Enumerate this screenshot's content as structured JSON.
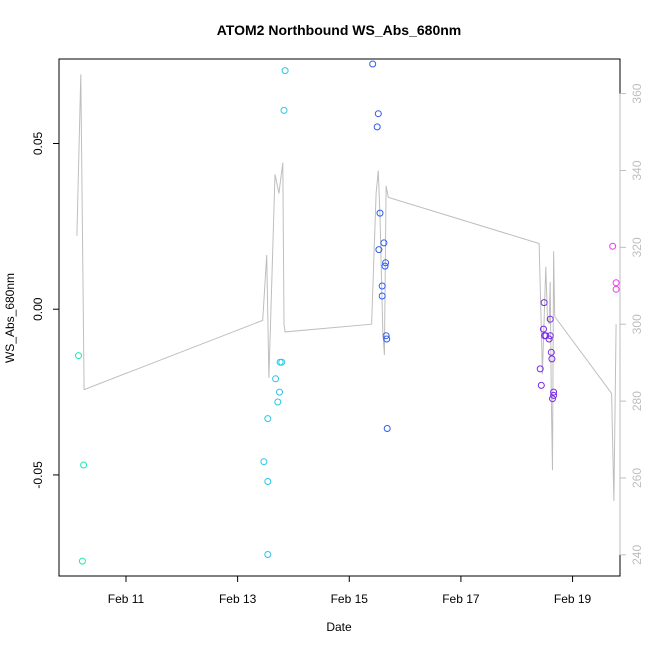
{
  "chart_data": {
    "type": "scatter",
    "title": "ATOM2 Northbound WS_Abs_680nm",
    "xlabel": "Date",
    "ylabel": "WS_Abs_680nm",
    "xlim": [
      9.8,
      19.85
    ],
    "ylim": [
      -0.0805,
      0.0755
    ],
    "y2lim": [
      234.5,
      369.0
    ],
    "x_ticks": [
      {
        "value": 11,
        "label": "Feb 11"
      },
      {
        "value": 13,
        "label": "Feb 13"
      },
      {
        "value": 15,
        "label": "Feb 15"
      },
      {
        "value": 17,
        "label": "Feb 17"
      },
      {
        "value": 19,
        "label": "Feb 19"
      }
    ],
    "y_ticks": [
      {
        "value": -0.05,
        "label": "-0.05"
      },
      {
        "value": 0.0,
        "label": "0.00"
      },
      {
        "value": 0.05,
        "label": "0.05"
      }
    ],
    "y2_ticks": [
      {
        "value": 240,
        "label": "240"
      },
      {
        "value": 260,
        "label": "260"
      },
      {
        "value": 280,
        "label": "280"
      },
      {
        "value": 300,
        "label": "300"
      },
      {
        "value": 320,
        "label": "320"
      },
      {
        "value": 340,
        "label": "340"
      },
      {
        "value": 360,
        "label": "360"
      }
    ],
    "grid": false,
    "points": [
      {
        "x": 10.15,
        "y": -0.014,
        "color": "#1de9b6"
      },
      {
        "x": 10.24,
        "y": -0.047,
        "color": "#1de9b6"
      },
      {
        "x": 10.22,
        "y": -0.076,
        "color": "#1de9b6"
      },
      {
        "x": 13.47,
        "y": -0.046,
        "color": "#29c6e6"
      },
      {
        "x": 13.54,
        "y": -0.033,
        "color": "#29c6e6"
      },
      {
        "x": 13.54,
        "y": -0.052,
        "color": "#29c6e6"
      },
      {
        "x": 13.54,
        "y": -0.074,
        "color": "#29c6e6"
      },
      {
        "x": 13.68,
        "y": -0.021,
        "color": "#29c6e6"
      },
      {
        "x": 13.72,
        "y": -0.028,
        "color": "#29c6e6"
      },
      {
        "x": 13.75,
        "y": -0.025,
        "color": "#29c6e6"
      },
      {
        "x": 13.76,
        "y": -0.016,
        "color": "#29c6e6"
      },
      {
        "x": 13.79,
        "y": -0.016,
        "color": "#29c6e6"
      },
      {
        "x": 13.83,
        "y": 0.06,
        "color": "#29c6e6"
      },
      {
        "x": 13.85,
        "y": 0.072,
        "color": "#29c6e6"
      },
      {
        "x": 15.42,
        "y": 0.074,
        "color": "#2f5cf2"
      },
      {
        "x": 15.5,
        "y": 0.055,
        "color": "#2f5cf2"
      },
      {
        "x": 15.52,
        "y": 0.059,
        "color": "#2f5cf2"
      },
      {
        "x": 15.53,
        "y": 0.018,
        "color": "#2f5cf2"
      },
      {
        "x": 15.55,
        "y": 0.029,
        "color": "#2f5cf2"
      },
      {
        "x": 15.59,
        "y": 0.007,
        "color": "#2f5cf2"
      },
      {
        "x": 15.59,
        "y": 0.004,
        "color": "#2f5cf2"
      },
      {
        "x": 15.62,
        "y": 0.02,
        "color": "#2f5cf2"
      },
      {
        "x": 15.64,
        "y": 0.013,
        "color": "#2f5cf2"
      },
      {
        "x": 15.65,
        "y": 0.014,
        "color": "#2f5cf2"
      },
      {
        "x": 15.66,
        "y": -0.008,
        "color": "#2f5cf2"
      },
      {
        "x": 15.67,
        "y": -0.009,
        "color": "#2f5cf2"
      },
      {
        "x": 15.68,
        "y": -0.036,
        "color": "#2f5cf2"
      },
      {
        "x": 18.42,
        "y": -0.018,
        "color": "#7a2ae8"
      },
      {
        "x": 18.44,
        "y": -0.023,
        "color": "#7a2ae8"
      },
      {
        "x": 18.48,
        "y": -0.006,
        "color": "#7a2ae8"
      },
      {
        "x": 18.49,
        "y": 0.002,
        "color": "#7a2ae8"
      },
      {
        "x": 18.5,
        "y": -0.008,
        "color": "#7a2ae8"
      },
      {
        "x": 18.52,
        "y": -0.008,
        "color": "#7a2ae8"
      },
      {
        "x": 18.58,
        "y": -0.009,
        "color": "#7a2ae8"
      },
      {
        "x": 18.6,
        "y": -0.003,
        "color": "#7a2ae8"
      },
      {
        "x": 18.6,
        "y": -0.008,
        "color": "#7a2ae8"
      },
      {
        "x": 18.62,
        "y": -0.013,
        "color": "#7a2ae8"
      },
      {
        "x": 18.63,
        "y": -0.015,
        "color": "#7a2ae8"
      },
      {
        "x": 18.64,
        "y": -0.027,
        "color": "#7a2ae8"
      },
      {
        "x": 18.66,
        "y": -0.025,
        "color": "#7a2ae8"
      },
      {
        "x": 18.66,
        "y": -0.026,
        "color": "#7a2ae8"
      },
      {
        "x": 19.72,
        "y": 0.019,
        "color": "#e93ae9"
      },
      {
        "x": 19.78,
        "y": 0.008,
        "color": "#e93ae9"
      },
      {
        "x": 19.78,
        "y": 0.006,
        "color": "#e93ae9"
      }
    ],
    "secondary_series": {
      "color": "#bebebe",
      "axis": "right",
      "points": [
        [
          10.12,
          323
        ],
        [
          10.19,
          365
        ],
        [
          10.25,
          283
        ],
        [
          13.45,
          301
        ],
        [
          13.52,
          318
        ],
        [
          13.56,
          286
        ],
        [
          13.67,
          339
        ],
        [
          13.74,
          334
        ],
        [
          13.81,
          342
        ],
        [
          13.83,
          300
        ],
        [
          13.85,
          298
        ],
        [
          15.4,
          300
        ],
        [
          15.48,
          334
        ],
        [
          15.52,
          340
        ],
        [
          15.55,
          328
        ],
        [
          15.6,
          298
        ],
        [
          15.63,
          292
        ],
        [
          15.66,
          336
        ],
        [
          15.7,
          333
        ],
        [
          18.4,
          321
        ],
        [
          18.44,
          299
        ],
        [
          18.46,
          287
        ],
        [
          18.52,
          315
        ],
        [
          18.55,
          302
        ],
        [
          18.58,
          300
        ],
        [
          18.6,
          311
        ],
        [
          18.62,
          281
        ],
        [
          18.64,
          262
        ],
        [
          18.66,
          319
        ],
        [
          18.68,
          302
        ],
        [
          19.7,
          282
        ],
        [
          19.74,
          254
        ],
        [
          19.78,
          300
        ]
      ]
    }
  }
}
